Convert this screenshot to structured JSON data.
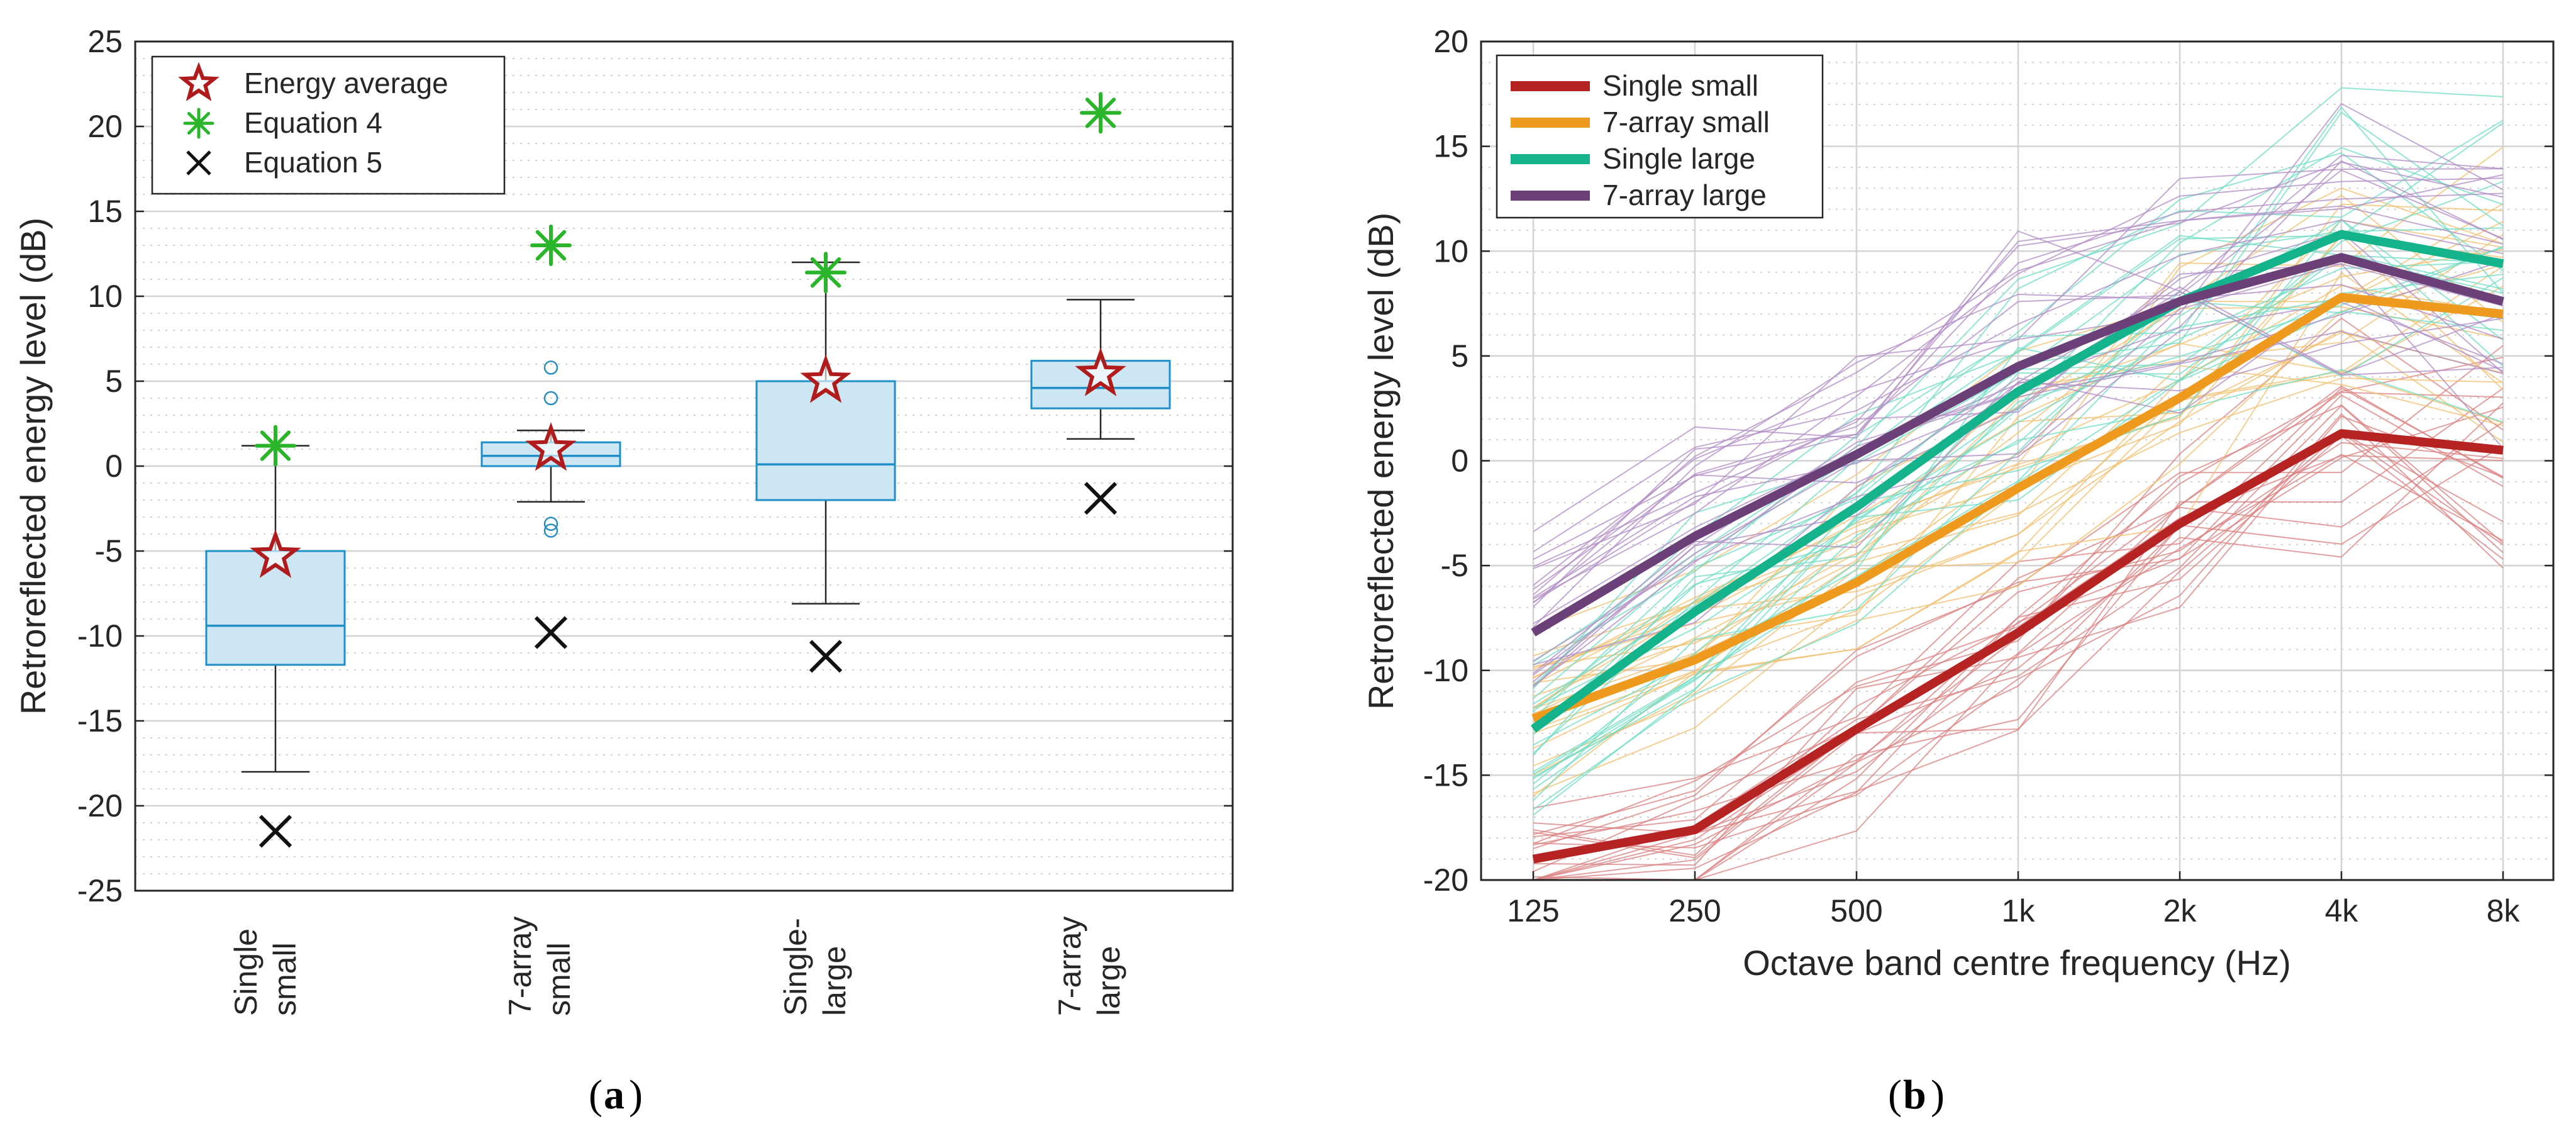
{
  "figure": {
    "caption_a_letter": "a",
    "caption_b_letter": "b"
  },
  "chart_data": [
    {
      "id": "a",
      "type": "box",
      "title": "",
      "ylabel": "Retroreflected energy level (dB)",
      "xlabel": "",
      "ylim": [
        -25,
        25
      ],
      "yticks": [
        -25,
        -20,
        -15,
        -10,
        -5,
        0,
        5,
        10,
        15,
        20,
        25
      ],
      "grid": true,
      "legend_position": "top-left",
      "categories": [
        {
          "line1": "Single",
          "line2": "small"
        },
        {
          "line1": "7-array",
          "line2": "small"
        },
        {
          "line1": "Single-",
          "line2": "large"
        },
        {
          "line1": "7-array",
          "line2": "large"
        }
      ],
      "boxes": [
        {
          "q1": -11.7,
          "median": -9.4,
          "q3": -5.0,
          "whisker_low": -18.0,
          "whisker_high": 1.2,
          "outliers": []
        },
        {
          "q1": 0.0,
          "median": 0.6,
          "q3": 1.4,
          "whisker_low": -2.1,
          "whisker_high": 2.1,
          "outliers": [
            5.8,
            4.0,
            -3.4,
            -3.8
          ]
        },
        {
          "q1": -2.0,
          "median": 0.1,
          "q3": 5.0,
          "whisker_low": -8.1,
          "whisker_high": 12.0,
          "outliers": []
        },
        {
          "q1": 3.4,
          "median": 4.6,
          "q3": 6.2,
          "whisker_low": 1.6,
          "whisker_high": 9.8,
          "outliers": []
        }
      ],
      "series": [
        {
          "name": "Energy average",
          "marker": "star",
          "color": "#b01c1c",
          "values": [
            -5.3,
            1.0,
            5.0,
            5.4
          ]
        },
        {
          "name": "Equation 4",
          "marker": "asterisk",
          "color": "#2ab52a",
          "values": [
            1.2,
            13.0,
            11.4,
            20.8
          ]
        },
        {
          "name": "Equation 5",
          "marker": "x",
          "color": "#111111",
          "values": [
            -21.5,
            -9.8,
            -11.2,
            -1.9
          ]
        }
      ],
      "box_fill": "#cde6f3",
      "box_edge": "#1f8fc7"
    },
    {
      "id": "b",
      "type": "line",
      "title": "",
      "xlabel": "Octave band centre frequency (Hz)",
      "ylabel": "Retroreflected energy level (dB)",
      "ylim": [
        -20,
        20
      ],
      "yticks": [
        -20,
        -15,
        -10,
        -5,
        0,
        5,
        10,
        15,
        20
      ],
      "categories": [
        "125",
        "250",
        "500",
        "1k",
        "2k",
        "4k",
        "8k"
      ],
      "grid": true,
      "legend_position": "top-left",
      "series": [
        {
          "name": "Single small",
          "color": "#b52323",
          "values": [
            -19.0,
            -17.6,
            -12.8,
            -8.2,
            -3.0,
            1.3,
            0.5
          ]
        },
        {
          "name": "7-array small",
          "color": "#ee9a1e",
          "values": [
            -12.3,
            -9.5,
            -5.8,
            -1.3,
            3.0,
            7.8,
            7.0
          ]
        },
        {
          "name": "Single large",
          "color": "#14b38c",
          "values": [
            -12.8,
            -7.2,
            -2.2,
            3.3,
            7.6,
            10.8,
            9.4
          ]
        },
        {
          "name": "7-array large",
          "color": "#6b3f78",
          "values": [
            -8.2,
            -3.6,
            0.3,
            4.5,
            7.6,
            9.7,
            7.6
          ]
        }
      ]
    }
  ]
}
